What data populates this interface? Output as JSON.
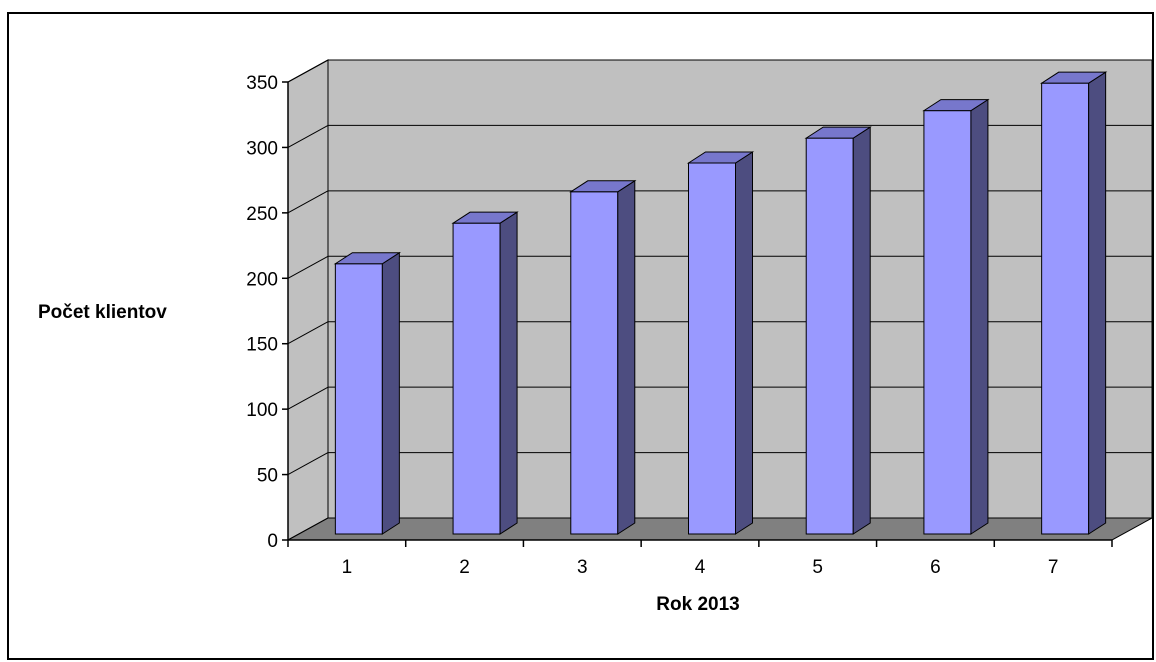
{
  "chart_data": {
    "type": "bar",
    "style": "3d-column",
    "categories": [
      "1",
      "2",
      "3",
      "4",
      "5",
      "6",
      "7"
    ],
    "values": [
      205,
      236,
      260,
      282,
      301,
      322,
      343
    ],
    "xlabel": "Rok 2013",
    "ylabel": "Počet klientov",
    "ylim": [
      0,
      350
    ],
    "yticks": [
      "0",
      "50",
      "100",
      "150",
      "200",
      "250",
      "300",
      "350"
    ],
    "grid": true,
    "legend": "none",
    "colors": {
      "bar_front": "#9999ff",
      "bar_side": "#4d4d80",
      "bar_top": "#7777cc",
      "wall": "#c0c0c0",
      "floor": "#808080",
      "outline": "#000000"
    }
  }
}
